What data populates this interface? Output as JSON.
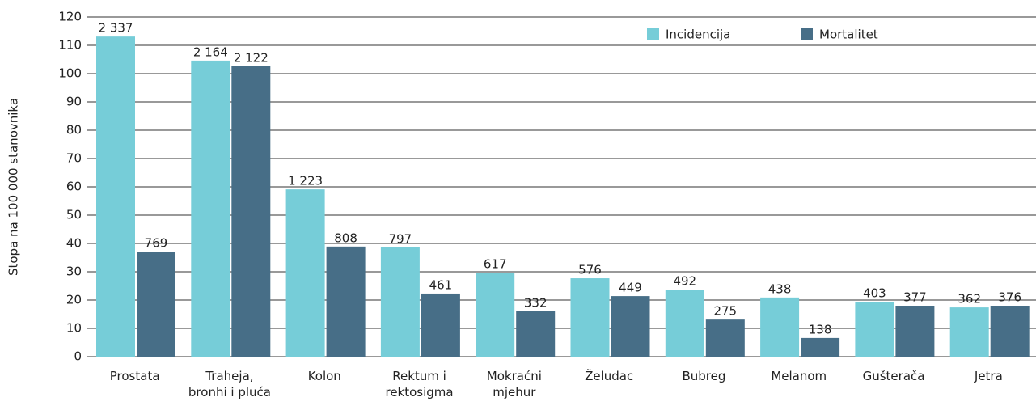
{
  "chart_data": {
    "type": "bar",
    "y_label": "Stopa na 100 000 stanovnika",
    "categories": [
      [
        "Prostata"
      ],
      [
        "Traheja,",
        "bronhi i pluća"
      ],
      [
        "Kolon"
      ],
      [
        "Rektum i",
        "rektosigma"
      ],
      [
        "Mokraćni",
        "mjehur"
      ],
      [
        "Želudac"
      ],
      [
        "Bubreg"
      ],
      [
        "Melanom"
      ],
      [
        "Gušterača"
      ],
      [
        "Jetra"
      ]
    ],
    "series": [
      {
        "name": "Incidencija",
        "color": "#76cdd8",
        "values": [
          113.1,
          104.6,
          59.1,
          38.6,
          29.7,
          27.7,
          23.7,
          20.9,
          19.4,
          17.4
        ],
        "counts": [
          "2 337",
          "2 164",
          "1 223",
          "797",
          "617",
          "576",
          "492",
          "438",
          "403",
          "362"
        ]
      },
      {
        "name": "Mortalitet",
        "color": "#476e87",
        "values": [
          37.1,
          102.6,
          38.9,
          22.3,
          16.0,
          21.4,
          13.1,
          6.6,
          18.0,
          18.0
        ],
        "counts": [
          "769",
          "2 122",
          "808",
          "461",
          "332",
          "449",
          "275",
          "138",
          "377",
          "376"
        ]
      }
    ],
    "ylim": [
      0,
      120
    ],
    "yticks": [
      0,
      10,
      20,
      30,
      40,
      50,
      60,
      70,
      80,
      90,
      100,
      110,
      120
    ],
    "grid": true,
    "legend": "top-right"
  }
}
